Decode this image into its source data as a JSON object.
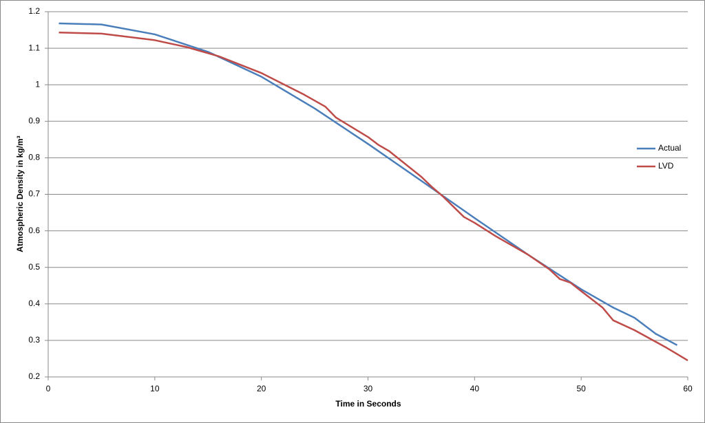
{
  "chart_data": {
    "type": "line",
    "x_label": "Time in Seconds",
    "y_label": "Atmospheric Density in kg/m³",
    "xlim": [
      0,
      60
    ],
    "xticks": [
      0,
      10,
      20,
      30,
      40,
      50,
      60
    ],
    "ylim": [
      0.2,
      1.2
    ],
    "yticks": [
      0.2,
      0.3,
      0.4,
      0.5,
      0.6,
      0.7,
      0.8,
      0.9,
      1,
      1.1,
      1.2
    ],
    "grid": true,
    "legend": "right",
    "series": [
      {
        "name": "Actual",
        "color": "#4a7ebb",
        "x": [
          1,
          5,
          10,
          15,
          20,
          25,
          30,
          35,
          40,
          45,
          50,
          53,
          55,
          57,
          59
        ],
        "values": [
          1.168,
          1.165,
          1.138,
          1.09,
          1.022,
          0.935,
          0.838,
          0.737,
          0.635,
          0.535,
          0.44,
          0.39,
          0.362,
          0.318,
          0.287
        ]
      },
      {
        "name": "LVD",
        "color": "#be4b48",
        "x": [
          1,
          5,
          10,
          13,
          16,
          20,
          24,
          26,
          27,
          30,
          31,
          32,
          35,
          36,
          37,
          39,
          40,
          42,
          45,
          47,
          48,
          49,
          50,
          52,
          53,
          55,
          58,
          60
        ],
        "values": [
          1.143,
          1.14,
          1.122,
          1.103,
          1.078,
          1.032,
          0.973,
          0.94,
          0.91,
          0.857,
          0.835,
          0.818,
          0.748,
          0.72,
          0.695,
          0.638,
          0.622,
          0.585,
          0.535,
          0.495,
          0.468,
          0.458,
          0.435,
          0.39,
          0.355,
          0.328,
          0.28,
          0.245
        ]
      }
    ]
  }
}
